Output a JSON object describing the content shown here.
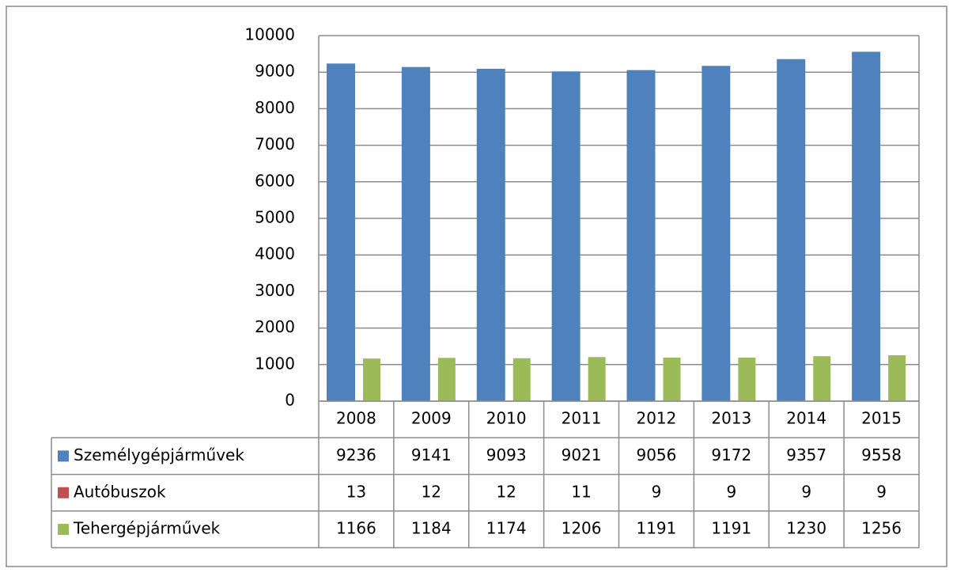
{
  "chart_data": {
    "type": "bar",
    "categories": [
      "2008",
      "2009",
      "2010",
      "2011",
      "2012",
      "2013",
      "2014",
      "2015"
    ],
    "series": [
      {
        "name": "Személygépjárművek",
        "color": "#4f81bd",
        "values": [
          9236,
          9141,
          9093,
          9021,
          9056,
          9172,
          9357,
          9558
        ]
      },
      {
        "name": "Autóbuszok",
        "color": "#c0504d",
        "values": [
          13,
          12,
          12,
          11,
          9,
          9,
          9,
          9
        ]
      },
      {
        "name": "Tehergépjárművek",
        "color": "#9bbb59",
        "values": [
          1166,
          1184,
          1174,
          1206,
          1191,
          1191,
          1230,
          1256
        ]
      }
    ],
    "ylim": [
      0,
      10000
    ],
    "yticks": [
      0,
      1000,
      2000,
      3000,
      4000,
      5000,
      6000,
      7000,
      8000,
      9000,
      10000
    ],
    "grid": true
  }
}
